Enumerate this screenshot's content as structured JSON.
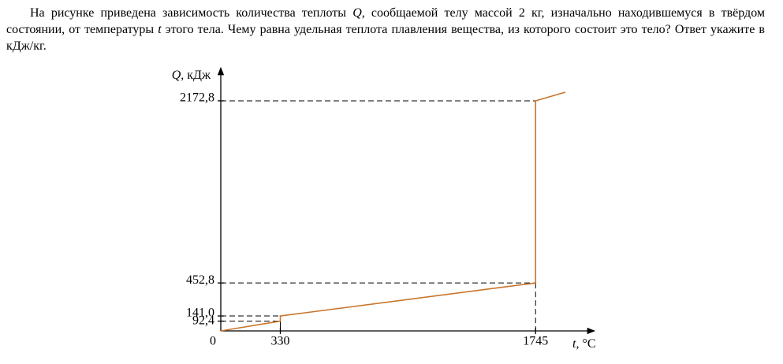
{
  "problem": {
    "parts": [
      {
        "text": "На рисунке приведена зависимость количества теплоты ",
        "italic": false
      },
      {
        "text": "Q",
        "italic": true
      },
      {
        "text": ", сообщаемой телу массой 2 кг, изначально находившемуся в твёрдом состоянии, от температуры ",
        "italic": false
      },
      {
        "text": "t",
        "italic": true
      },
      {
        "text": " этого тела. Чему равна удельная теплота плавления вещества, из которого состоит это тело? Ответ укажите в кДж/кг.",
        "italic": false
      }
    ]
  },
  "chart_data": {
    "type": "line",
    "ylabel_parts": [
      {
        "text": "Q",
        "italic": true
      },
      {
        "text": ", кДж",
        "italic": false
      }
    ],
    "xlabel_parts": [
      {
        "text": "t",
        "italic": true
      },
      {
        "text": ", °C",
        "italic": false
      }
    ],
    "x": [
      0,
      330,
      330,
      1745,
      1745,
      1910
    ],
    "series": [
      {
        "color": "#c8742a",
        "values": [
          0,
          92.4,
          141,
          452.8,
          2172.8,
          2254
        ]
      }
    ],
    "xlim": [
      0,
      2063
    ],
    "ylim": [
      0,
      2470
    ],
    "xticks": [
      0,
      330,
      1745
    ],
    "yticks": [
      {
        "value": 92.4,
        "label": "92,4"
      },
      {
        "value": 141,
        "label": "141,0"
      },
      {
        "value": 452.8,
        "label": "452,8"
      },
      {
        "value": 2172.8,
        "label": "2172,8"
      }
    ]
  }
}
